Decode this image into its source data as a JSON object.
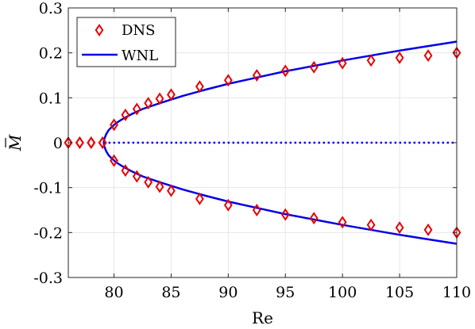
{
  "chart_data": {
    "type": "line",
    "title": "",
    "xlabel": "Re",
    "ylabel": "M",
    "ylabel_decoration": "bar",
    "xlim": [
      76,
      110
    ],
    "ylim": [
      -0.3,
      0.3
    ],
    "x_ticks": [
      80,
      85,
      90,
      95,
      100,
      105,
      110
    ],
    "x_tick_labels": [
      "80",
      "85",
      "90",
      "95",
      "100",
      "105",
      "110"
    ],
    "y_ticks": [
      -0.3,
      -0.2,
      -0.1,
      0,
      0.1,
      0.2,
      0.3
    ],
    "y_tick_labels": [
      "-0.3",
      "-0.2",
      "-0.1",
      "0",
      "0.1",
      "0.2",
      "0.3"
    ],
    "grid": true,
    "legend_position": "top-left",
    "colors": {
      "dns": "#e60000",
      "wnl": "#0000e6",
      "grid": "#e6e6e6",
      "axis": "#262626"
    },
    "series": [
      {
        "name": "DNS",
        "style": "diamond-markers",
        "x": [
          76,
          77,
          78,
          79,
          80,
          81,
          82,
          83,
          84,
          85,
          87.5,
          90,
          92.5,
          95,
          97.5,
          100,
          102.5,
          105,
          107.5,
          110
        ],
        "y_upper": [
          0,
          0,
          0,
          0,
          0.04,
          0.062,
          0.075,
          0.088,
          0.098,
          0.107,
          0.125,
          0.139,
          0.15,
          0.16,
          0.168,
          0.177,
          0.183,
          0.189,
          0.194,
          0.2
        ],
        "y_lower": [
          0,
          0,
          0,
          0,
          -0.04,
          -0.062,
          -0.075,
          -0.088,
          -0.098,
          -0.107,
          -0.125,
          -0.139,
          -0.15,
          -0.16,
          -0.168,
          -0.177,
          -0.183,
          -0.189,
          -0.194,
          -0.2
        ]
      },
      {
        "name": "WNL",
        "style": "solid-line",
        "critical_re": 79.1,
        "x": [
          79.1,
          79.15,
          79.3,
          79.5,
          79.8,
          80.2,
          80.7,
          81.5,
          82.5,
          84,
          86,
          88,
          90,
          92.5,
          95,
          97.5,
          100,
          102.5,
          105,
          107.5,
          110
        ],
        "y_upper": [
          0,
          0.008,
          0.018,
          0.027,
          0.035,
          0.044,
          0.052,
          0.063,
          0.075,
          0.088,
          0.104,
          0.118,
          0.131,
          0.145,
          0.159,
          0.171,
          0.183,
          0.194,
          0.205,
          0.215,
          0.225
        ],
        "y_lower": [
          0,
          -0.008,
          -0.018,
          -0.027,
          -0.035,
          -0.044,
          -0.052,
          -0.063,
          -0.075,
          -0.088,
          -0.104,
          -0.118,
          -0.131,
          -0.145,
          -0.159,
          -0.171,
          -0.183,
          -0.194,
          -0.205,
          -0.215,
          -0.225
        ],
        "unstable_branch": {
          "style": "dotted-line",
          "y": 0,
          "x_range": [
            79.1,
            110
          ]
        }
      }
    ]
  }
}
